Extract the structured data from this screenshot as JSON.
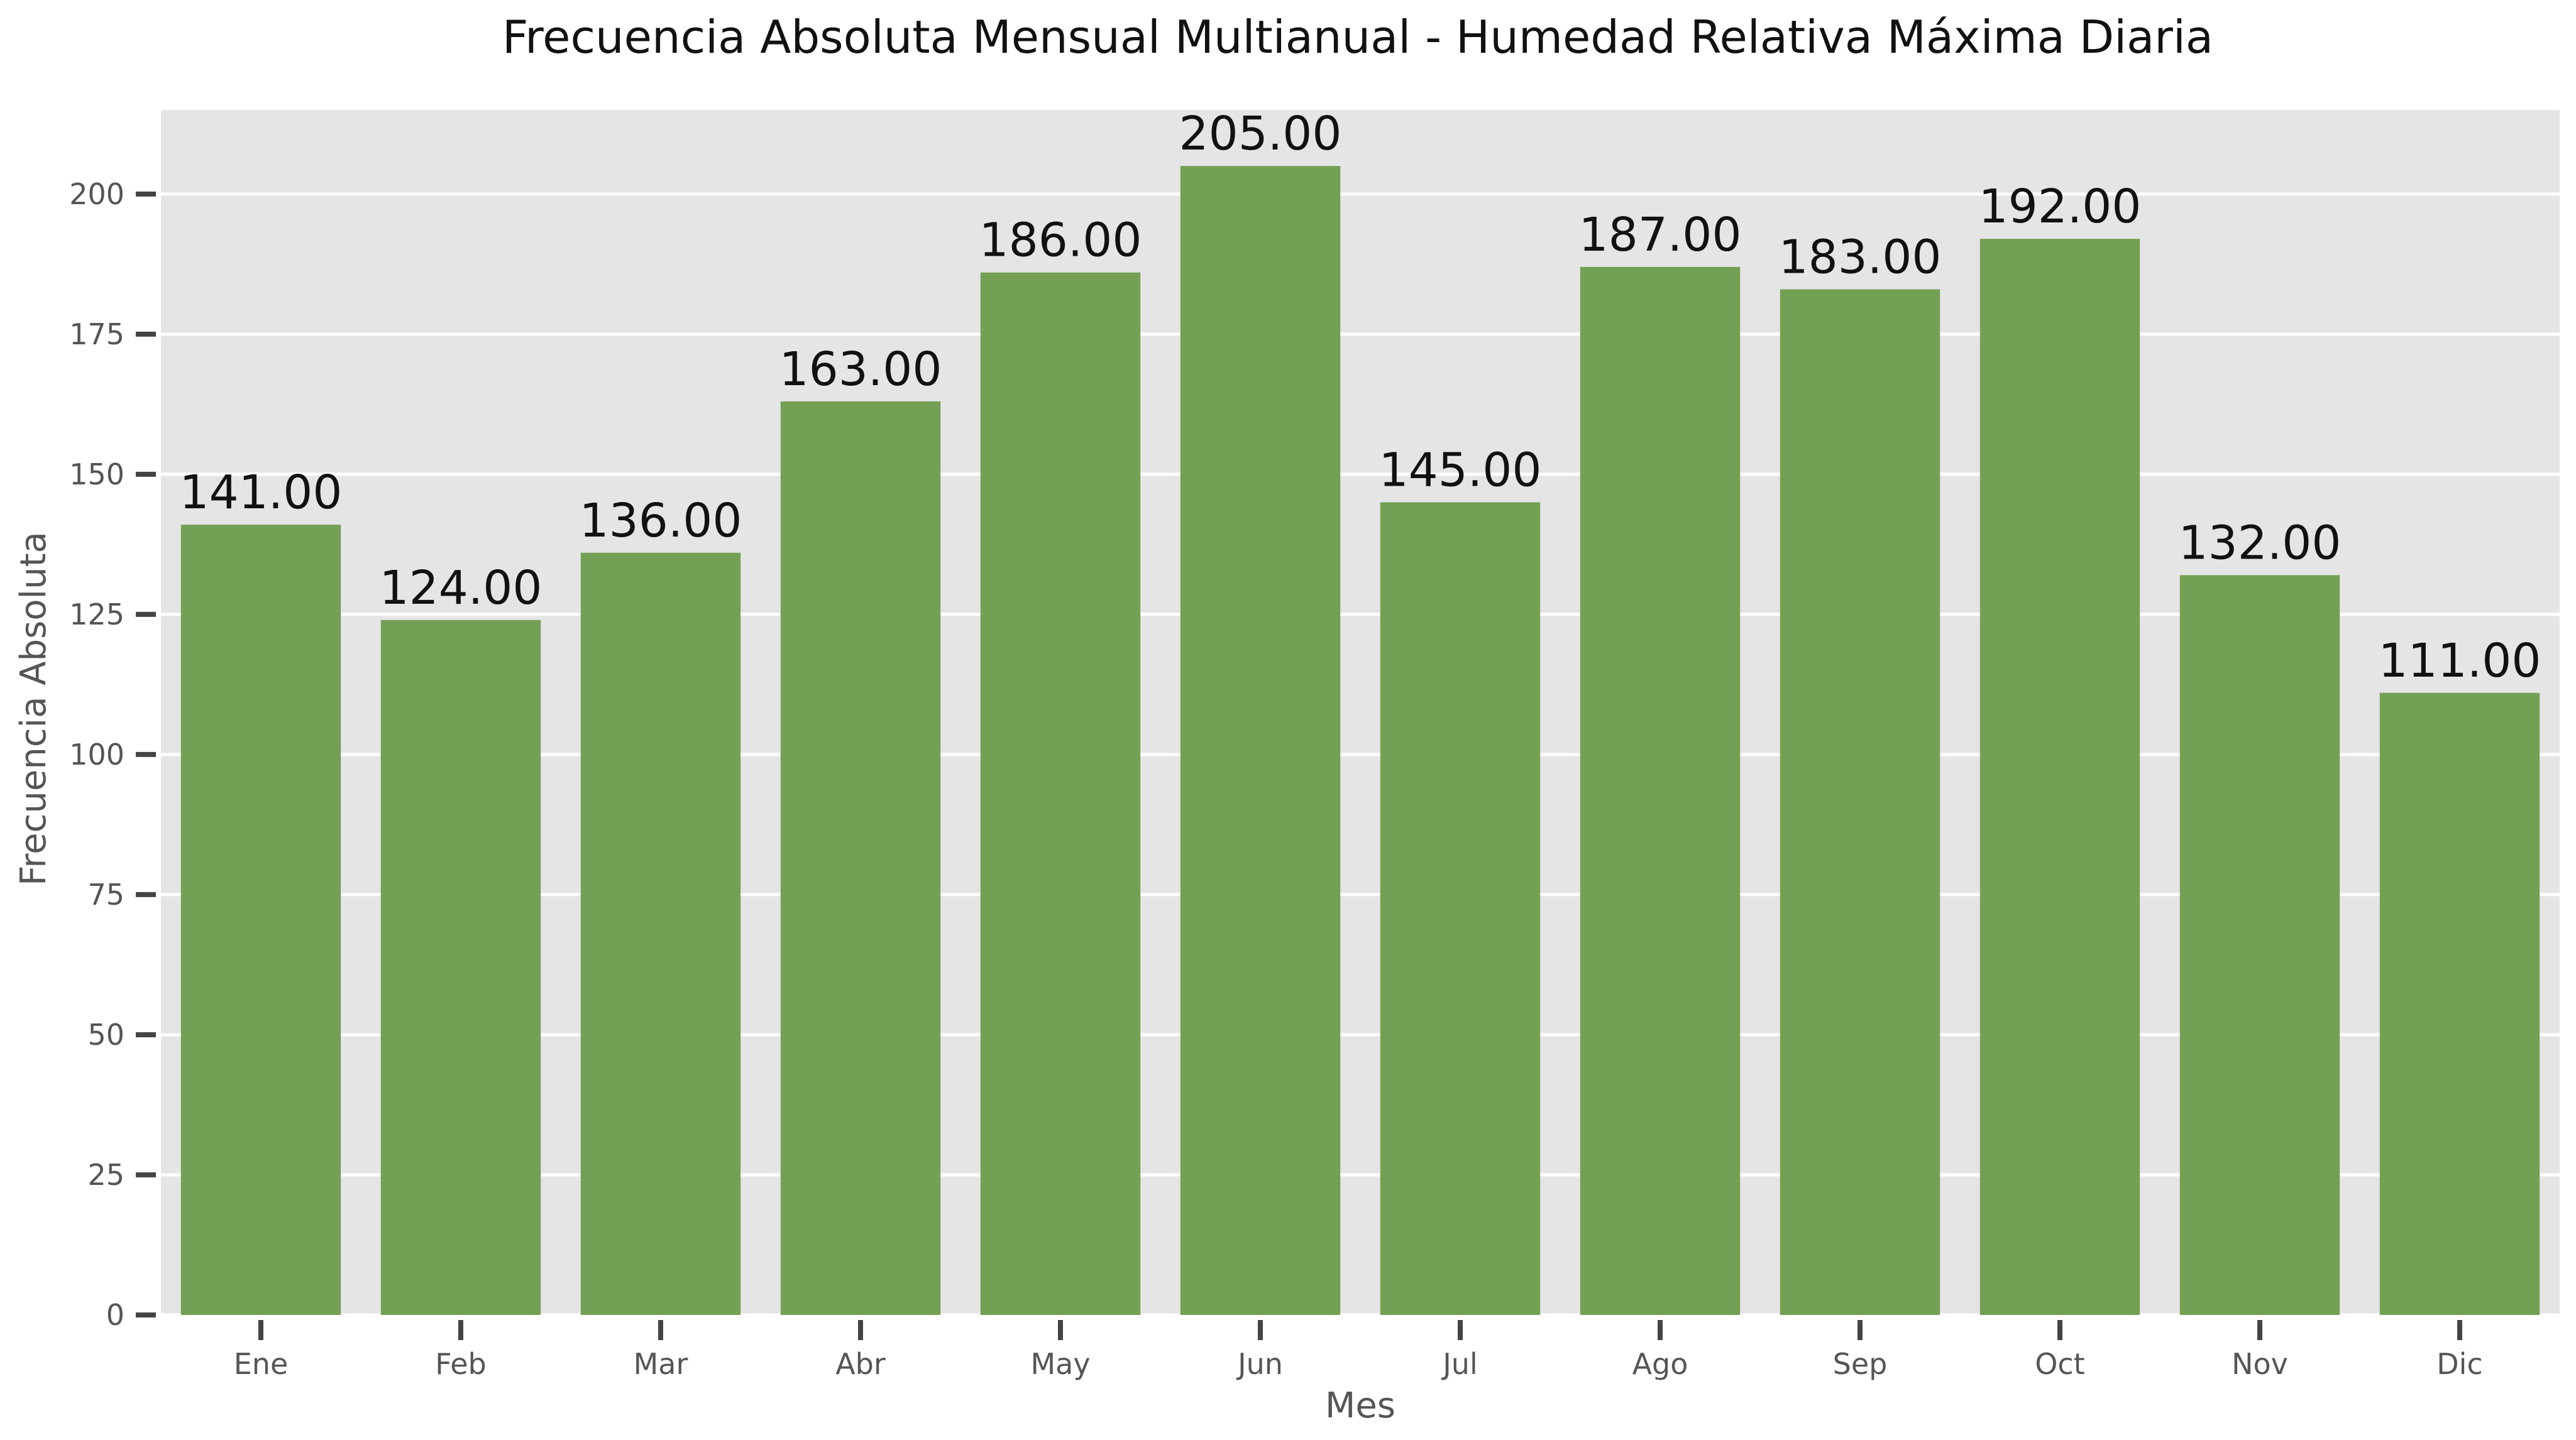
{
  "chart_data": {
    "type": "bar",
    "title": "Frecuencia Absoluta Mensual Multianual - Humedad Relativa Máxima Diaria",
    "xlabel": "Mes",
    "ylabel": "Frecuencia Absoluta",
    "categories": [
      "Ene",
      "Feb",
      "Mar",
      "Abr",
      "May",
      "Jun",
      "Jul",
      "Ago",
      "Sep",
      "Oct",
      "Nov",
      "Dic"
    ],
    "values": [
      141,
      124,
      136,
      163,
      186,
      205,
      145,
      187,
      183,
      192,
      132,
      111
    ],
    "value_labels": [
      "141.00",
      "124.00",
      "136.00",
      "163.00",
      "186.00",
      "205.00",
      "145.00",
      "187.00",
      "183.00",
      "192.00",
      "132.00",
      "111.00"
    ],
    "ylim": [
      0,
      215
    ],
    "yticks": [
      0,
      25,
      50,
      75,
      100,
      125,
      150,
      175,
      200
    ],
    "grid": true,
    "legend": "none",
    "colors": {
      "bar": "#74a055",
      "background": "#e5e5e5",
      "grid": "#ffffff",
      "tick": "#444444"
    }
  }
}
